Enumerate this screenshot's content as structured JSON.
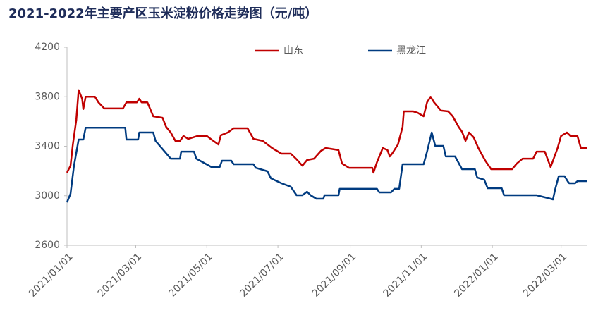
{
  "chart_data": {
    "type": "line",
    "title": "2021-2022年主要产区玉米淀粉价格走势图（元/吨）",
    "xlim": [
      "2021/01/01",
      "2022/03/23"
    ],
    "xticks": [
      "2021/01/01",
      "2021/03/01",
      "2021/05/01",
      "2021/07/01",
      "2021/09/01",
      "2021/11/01",
      "2022/01/01",
      "2022/03/01"
    ],
    "ylim": [
      2600,
      4200
    ],
    "yticks": [
      2600,
      3000,
      3400,
      3800,
      4200
    ],
    "grid": false,
    "legend": "top",
    "series": [
      {
        "name": "山东",
        "color": "#c00000",
        "x": [
          "2021/01/01",
          "2021/01/04",
          "2021/01/06",
          "2021/01/09",
          "2021/01/11",
          "2021/01/14",
          "2021/01/15",
          "2021/01/17",
          "2021/01/25",
          "2021/01/28",
          "2021/02/02",
          "2021/02/18",
          "2021/02/21",
          "2021/03/02",
          "2021/03/04",
          "2021/03/06",
          "2021/03/11",
          "2021/03/16",
          "2021/03/24",
          "2021/03/27",
          "2021/03/31",
          "2021/04/04",
          "2021/04/08",
          "2021/04/11",
          "2021/04/15",
          "2021/04/23",
          "2021/05/01",
          "2021/05/05",
          "2021/05/11",
          "2021/05/13",
          "2021/05/19",
          "2021/05/24",
          "2021/06/05",
          "2021/06/10",
          "2021/06/18",
          "2021/06/26",
          "2021/07/04",
          "2021/07/12",
          "2021/07/17",
          "2021/07/22",
          "2021/07/26",
          "2021/08/01",
          "2021/08/07",
          "2021/08/11",
          "2021/08/22",
          "2021/08/25",
          "2021/08/31",
          "2021/09/20",
          "2021/09/21",
          "2021/09/24",
          "2021/09/29",
          "2021/10/03",
          "2021/10/05",
          "2021/10/07",
          "2021/10/12",
          "2021/10/16",
          "2021/10/17",
          "2021/10/25",
          "2021/10/29",
          "2021/11/03",
          "2021/11/06",
          "2021/11/09",
          "2021/11/12",
          "2021/11/18",
          "2021/11/24",
          "2021/11/28",
          "2021/12/03",
          "2021/12/06",
          "2021/12/09",
          "2021/12/12",
          "2021/12/16",
          "2021/12/20",
          "2021/12/26",
          "2021/12/31",
          "2022/01/18",
          "2022/01/22",
          "2022/01/27",
          "2022/02/05",
          "2022/02/08",
          "2022/02/15",
          "2022/02/20",
          "2022/02/26",
          "2022/03/01",
          "2022/03/06",
          "2022/03/09",
          "2022/03/15",
          "2022/03/18",
          "2022/03/23"
        ],
        "values": [
          3187,
          3243,
          3414,
          3614,
          3853,
          3784,
          3700,
          3800,
          3800,
          3755,
          3705,
          3705,
          3755,
          3755,
          3784,
          3755,
          3755,
          3642,
          3630,
          3557,
          3511,
          3443,
          3443,
          3483,
          3460,
          3483,
          3483,
          3454,
          3414,
          3489,
          3511,
          3545,
          3545,
          3460,
          3443,
          3386,
          3340,
          3340,
          3295,
          3243,
          3289,
          3300,
          3363,
          3386,
          3369,
          3261,
          3226,
          3226,
          3187,
          3272,
          3386,
          3369,
          3318,
          3340,
          3414,
          3557,
          3682,
          3682,
          3670,
          3642,
          3755,
          3800,
          3755,
          3688,
          3682,
          3642,
          3557,
          3517,
          3443,
          3511,
          3472,
          3386,
          3283,
          3215,
          3215,
          3261,
          3300,
          3300,
          3357,
          3357,
          3232,
          3386,
          3483,
          3511,
          3483,
          3483,
          3386,
          3386
        ]
      },
      {
        "name": "黑龙江",
        "color": "#003b80",
        "x": [
          "2021/01/01",
          "2021/01/04",
          "2021/01/07",
          "2021/01/11",
          "2021/01/15",
          "2021/01/17",
          "2021/02/20",
          "2021/02/21",
          "2021/03/03",
          "2021/03/04",
          "2021/03/16",
          "2021/03/18",
          "2021/03/31",
          "2021/04/08",
          "2021/04/09",
          "2021/04/20",
          "2021/04/22",
          "2021/05/05",
          "2021/05/12",
          "2021/05/14",
          "2021/05/22",
          "2021/05/24",
          "2021/06/10",
          "2021/06/12",
          "2021/06/22",
          "2021/06/25",
          "2021/07/04",
          "2021/07/12",
          "2021/07/17",
          "2021/07/22",
          "2021/07/26",
          "2021/07/29",
          "2021/08/03",
          "2021/08/09",
          "2021/08/10",
          "2021/08/22",
          "2021/08/23",
          "2021/09/24",
          "2021/09/26",
          "2021/10/06",
          "2021/10/09",
          "2021/10/13",
          "2021/10/16",
          "2021/11/03",
          "2021/11/06",
          "2021/11/10",
          "2021/11/13",
          "2021/11/20",
          "2021/11/22",
          "2021/11/30",
          "2021/12/06",
          "2021/12/17",
          "2021/12/19",
          "2021/12/25",
          "2021/12/28",
          "2022/01/09",
          "2022/01/11",
          "2022/02/08",
          "2022/02/20",
          "2022/02/22",
          "2022/02/24",
          "2022/02/27",
          "2022/03/04",
          "2022/03/07",
          "2022/03/08",
          "2022/03/13",
          "2022/03/15",
          "2022/03/23"
        ],
        "values": [
          2947,
          3016,
          3243,
          3454,
          3454,
          3550,
          3550,
          3454,
          3454,
          3511,
          3511,
          3443,
          3300,
          3300,
          3357,
          3357,
          3300,
          3232,
          3232,
          3283,
          3283,
          3255,
          3255,
          3226,
          3198,
          3141,
          3101,
          3073,
          3004,
          3004,
          3033,
          3004,
          2976,
          2976,
          3004,
          3004,
          3056,
          3056,
          3027,
          3027,
          3056,
          3056,
          3255,
          3255,
          3357,
          3511,
          3403,
          3403,
          3318,
          3318,
          3215,
          3215,
          3147,
          3130,
          3061,
          3061,
          3004,
          3004,
          2976,
          2970,
          3056,
          3158,
          3158,
          3112,
          3101,
          3101,
          3118,
          3118
        ]
      }
    ]
  }
}
